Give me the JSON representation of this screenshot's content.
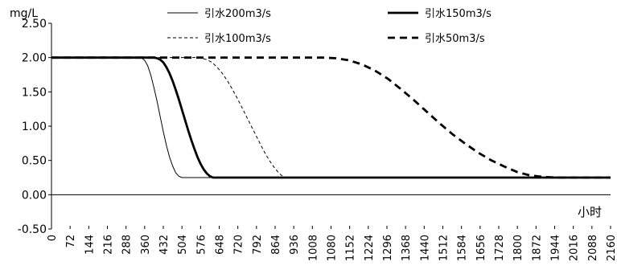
{
  "chart_data": {
    "type": "line",
    "title": "",
    "ylabel": "mg/L",
    "xlabel": "小时",
    "ylim": [
      -0.5,
      2.5
    ],
    "yticks": [
      -0.5,
      0.0,
      0.5,
      1.0,
      1.5,
      2.0,
      2.5
    ],
    "ytick_labels": [
      "-0.50",
      "0.00",
      "0.50",
      "1.00",
      "1.50",
      "2.00",
      "2.50"
    ],
    "xlim": [
      0,
      2160
    ],
    "xticks": [
      0,
      72,
      144,
      216,
      288,
      360,
      432,
      504,
      576,
      648,
      720,
      792,
      864,
      936,
      1008,
      1080,
      1152,
      1224,
      1296,
      1368,
      1440,
      1512,
      1584,
      1656,
      1728,
      1800,
      1872,
      1944,
      2016,
      2088,
      2160
    ],
    "grid": false,
    "legend_position": "top",
    "series": [
      {
        "name": "引水200m3/s",
        "style": "thin-solid",
        "x": [
          0,
          300,
          336,
          350,
          360,
          372,
          384,
          396,
          408,
          420,
          432,
          444,
          456,
          468,
          480,
          492,
          504,
          2160
        ],
        "y": [
          2.0,
          2.0,
          2.0,
          1.99,
          1.96,
          1.88,
          1.74,
          1.56,
          1.36,
          1.14,
          0.92,
          0.72,
          0.55,
          0.42,
          0.32,
          0.27,
          0.25,
          0.25
        ]
      },
      {
        "name": "引水150m3/s",
        "style": "thick-solid",
        "x": [
          0,
          360,
          396,
          408,
          420,
          432,
          444,
          456,
          468,
          480,
          492,
          504,
          516,
          528,
          540,
          552,
          564,
          576,
          588,
          600,
          612,
          624,
          2160
        ],
        "y": [
          2.0,
          2.0,
          2.0,
          1.99,
          1.97,
          1.93,
          1.86,
          1.77,
          1.66,
          1.53,
          1.39,
          1.24,
          1.09,
          0.94,
          0.8,
          0.67,
          0.55,
          0.45,
          0.37,
          0.31,
          0.27,
          0.25,
          0.25
        ]
      },
      {
        "name": "引水100m3/s",
        "style": "thin-dashed",
        "x": [
          0,
          560,
          580,
          600,
          620,
          640,
          660,
          680,
          700,
          720,
          740,
          760,
          780,
          800,
          820,
          840,
          860,
          880,
          900,
          2160
        ],
        "y": [
          2.0,
          2.0,
          1.99,
          1.97,
          1.93,
          1.86,
          1.77,
          1.66,
          1.53,
          1.39,
          1.24,
          1.09,
          0.94,
          0.79,
          0.64,
          0.51,
          0.4,
          0.31,
          0.25,
          0.25
        ]
      },
      {
        "name": "引水50m3/s",
        "style": "thick-dashed",
        "x": [
          0,
          1000,
          1050,
          1100,
          1150,
          1200,
          1250,
          1300,
          1350,
          1400,
          1450,
          1500,
          1550,
          1600,
          1650,
          1700,
          1750,
          1800,
          1850,
          1900,
          1950,
          2160
        ],
        "y": [
          2.0,
          2.0,
          2.0,
          1.99,
          1.96,
          1.9,
          1.81,
          1.69,
          1.54,
          1.38,
          1.21,
          1.04,
          0.88,
          0.74,
          0.61,
          0.5,
          0.41,
          0.33,
          0.28,
          0.26,
          0.25,
          0.25
        ]
      }
    ]
  }
}
